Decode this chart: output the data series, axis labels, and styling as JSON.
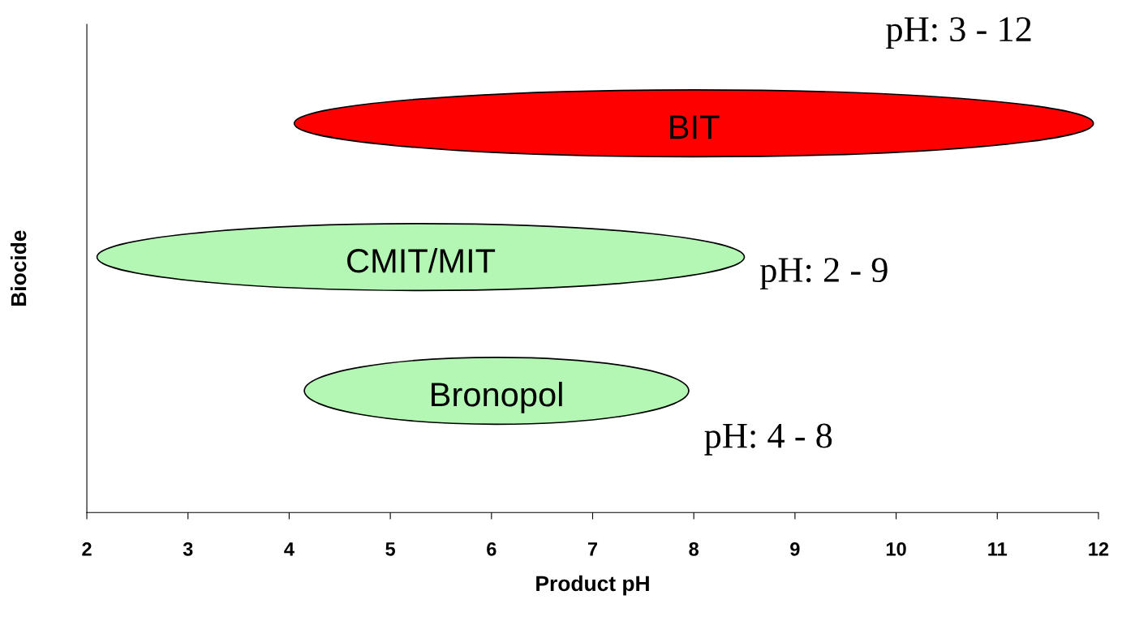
{
  "chart_data": {
    "type": "bar",
    "orientation": "horizontal",
    "xlabel": "Product pH",
    "ylabel": "Biocide",
    "categories": [
      "BIT",
      "CMIT/MIT",
      "Bronopol"
    ],
    "base": [
      4.05,
      2.1,
      4.15
    ],
    "values": [
      7.9,
      6.4,
      3.8
    ],
    "colors": [
      "#ff0000",
      "#b4f7b4",
      "#b4f7b4"
    ],
    "xlim": [
      2,
      12
    ],
    "xticks": [
      2,
      3,
      4,
      5,
      6,
      7,
      8,
      9,
      10,
      11,
      12
    ],
    "annotations": [
      "pH: 3 - 12",
      "pH: 2 - 9",
      "pH: 4 - 8"
    ],
    "grid": false,
    "legend": false
  }
}
